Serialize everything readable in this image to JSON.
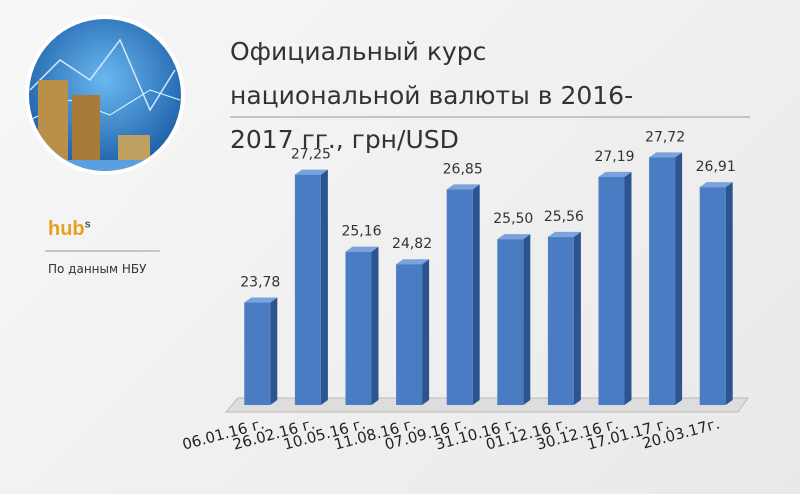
{
  "chart_data": {
    "type": "bar3d",
    "title": "Официальный курс национальной валюты в 2016-2017 гг., грн/USD",
    "source": "По данным НБУ",
    "categories": [
      "06.01.16 г.",
      "26.02.16 г.",
      "10.05.16 г.",
      "11.08.16 г.",
      "07.09.16 г.",
      "31.10.16 г.",
      "01.12.16 г.",
      "30.12.16 г.",
      "17.01.17 г.",
      "20.03.17г."
    ],
    "values": [
      23.78,
      27.25,
      25.16,
      24.82,
      26.85,
      25.5,
      25.56,
      27.19,
      27.72,
      26.91
    ],
    "value_labels": [
      "23,78",
      "27,25",
      "25,16",
      "24,82",
      "26,85",
      "25,50",
      "25,56",
      "27,19",
      "27,72",
      "26,91"
    ],
    "color": "#4a7cc4",
    "ylim": [
      21,
      28
    ]
  },
  "logo": {
    "text": "hub",
    "sup": "s"
  }
}
